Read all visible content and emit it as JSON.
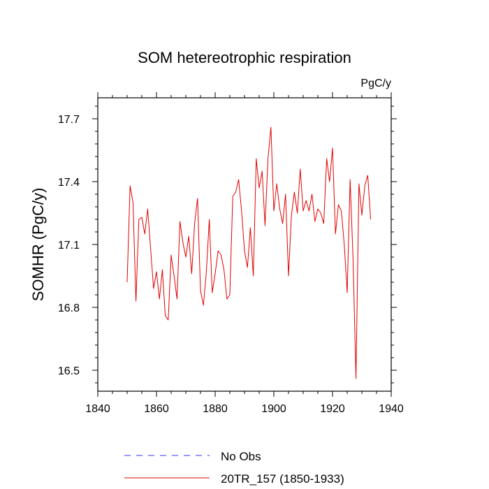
{
  "chart_data": {
    "type": "line",
    "title": "SOM hetereotrophic respiration",
    "units_label": "PgC/y",
    "ylabel": "SOMHR  (PgC/y)",
    "xlabel": "",
    "xlim": [
      1840,
      1940
    ],
    "ylim": [
      16.4,
      17.8
    ],
    "x_ticks": [
      1840,
      1860,
      1880,
      1900,
      1920,
      1940
    ],
    "x_tick_labels": [
      "1840",
      "1860",
      "1880",
      "1900",
      "1920",
      "1940"
    ],
    "y_ticks": [
      16.5,
      16.8,
      17.1,
      17.4,
      17.7
    ],
    "y_tick_labels": [
      "16.5",
      "16.8",
      "17.1",
      "17.4",
      "17.7"
    ],
    "grid": false,
    "legend_position": "bottom",
    "series": [
      {
        "name": "No Obs",
        "color": "#3333ff",
        "dash": true,
        "x": [],
        "y": []
      },
      {
        "name": "20TR_157 (1850-1933)",
        "color": "#e00000",
        "dash": false,
        "x": [
          1850,
          1851,
          1852,
          1853,
          1854,
          1855,
          1856,
          1857,
          1858,
          1859,
          1860,
          1861,
          1862,
          1863,
          1864,
          1865,
          1866,
          1867,
          1868,
          1869,
          1870,
          1871,
          1872,
          1873,
          1874,
          1875,
          1876,
          1877,
          1878,
          1879,
          1880,
          1881,
          1882,
          1883,
          1884,
          1885,
          1886,
          1887,
          1888,
          1889,
          1890,
          1891,
          1892,
          1893,
          1894,
          1895,
          1896,
          1897,
          1898,
          1899,
          1900,
          1901,
          1902,
          1903,
          1904,
          1905,
          1906,
          1907,
          1908,
          1909,
          1910,
          1911,
          1912,
          1913,
          1914,
          1915,
          1916,
          1917,
          1918,
          1919,
          1920,
          1921,
          1922,
          1923,
          1924,
          1925,
          1926,
          1927,
          1928,
          1929,
          1930,
          1931,
          1932,
          1933
        ],
        "y": [
          16.92,
          17.38,
          17.3,
          16.83,
          17.22,
          17.23,
          17.15,
          17.27,
          17.08,
          16.89,
          16.97,
          16.84,
          16.98,
          16.76,
          16.74,
          17.05,
          16.95,
          16.84,
          17.21,
          17.11,
          17.04,
          17.14,
          16.96,
          17.2,
          17.32,
          16.88,
          16.81,
          16.97,
          17.22,
          16.87,
          16.96,
          17.07,
          17.05,
          16.98,
          16.84,
          16.86,
          17.33,
          17.35,
          17.41,
          17.26,
          17.07,
          16.99,
          17.18,
          16.95,
          17.51,
          17.37,
          17.45,
          17.19,
          17.51,
          17.66,
          17.26,
          17.39,
          17.27,
          17.2,
          17.34,
          16.95,
          17.24,
          17.35,
          17.25,
          17.46,
          17.26,
          17.31,
          17.26,
          17.34,
          17.21,
          17.27,
          17.25,
          17.2,
          17.51,
          17.4,
          17.56,
          17.15,
          17.29,
          17.26,
          17.1,
          16.87,
          17.41,
          17.03,
          16.46,
          17.39,
          17.24,
          17.38,
          17.43,
          17.22
        ]
      }
    ]
  }
}
